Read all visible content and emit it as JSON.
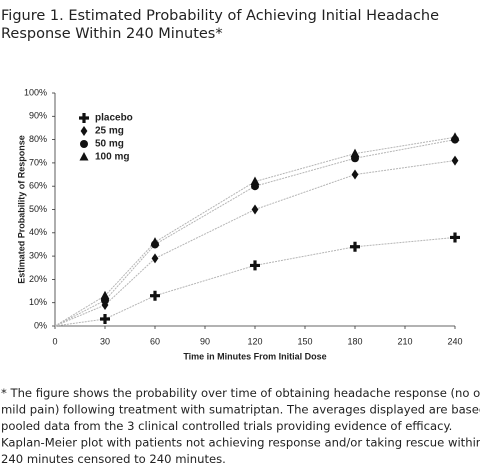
{
  "chart_data": {
    "type": "line",
    "title": [
      "Figure 1. Estimated Probability of Achieving Initial Headache",
      "Response Within 240 Minutes*"
    ],
    "x_label": "Time in Minutes From Initial Dose",
    "y_label": "Estimated Probability of Response",
    "x": [
      30,
      60,
      120,
      180,
      240
    ],
    "series": [
      {
        "name": "placebo",
        "color": "#111111",
        "marker": "plus",
        "values": [
          3,
          13,
          26,
          34,
          38
        ]
      },
      {
        "name": "25 mg",
        "color": "#111111",
        "marker": "diamond",
        "values": [
          9,
          29,
          50,
          65,
          71
        ]
      },
      {
        "name": "50 mg",
        "color": "#111111",
        "marker": "circle",
        "values": [
          11,
          35,
          60,
          72,
          80
        ]
      },
      {
        "name": "100 mg",
        "color": "#111111",
        "marker": "triangle",
        "values": [
          13,
          36,
          62,
          74,
          81
        ]
      }
    ],
    "line_color": "#b5b5b5",
    "xlim": [
      0,
      240
    ],
    "xticks": [
      0,
      30,
      60,
      90,
      120,
      150,
      180,
      210,
      240
    ],
    "ylim": [
      0,
      100
    ],
    "yticks": [
      {
        "value": 0,
        "label": "0%"
      },
      {
        "value": 10,
        "label": "10%"
      },
      {
        "value": 20,
        "label": "20%"
      },
      {
        "value": 30,
        "label": "30%"
      },
      {
        "value": 40,
        "label": "40%"
      },
      {
        "value": 50,
        "label": "50%"
      },
      {
        "value": 60,
        "label": "60%"
      },
      {
        "value": 70,
        "label": "70%"
      },
      {
        "value": 80,
        "label": "80%"
      },
      {
        "value": 90,
        "label": "90%"
      },
      {
        "value": 100,
        "label": "100%"
      }
    ],
    "legend": "upper left",
    "footnote": [
      "* The figure shows the probability over time of obtaining headache response (no or",
      "mild pain) following treatment with sumatriptan. The averages displayed are based on",
      "pooled data from the 3 clinical controlled trials providing evidence of efficacy.",
      "Kaplan-Meier plot with patients not achieving response and/or taking rescue within",
      "240 minutes censored to 240 minutes."
    ]
  }
}
